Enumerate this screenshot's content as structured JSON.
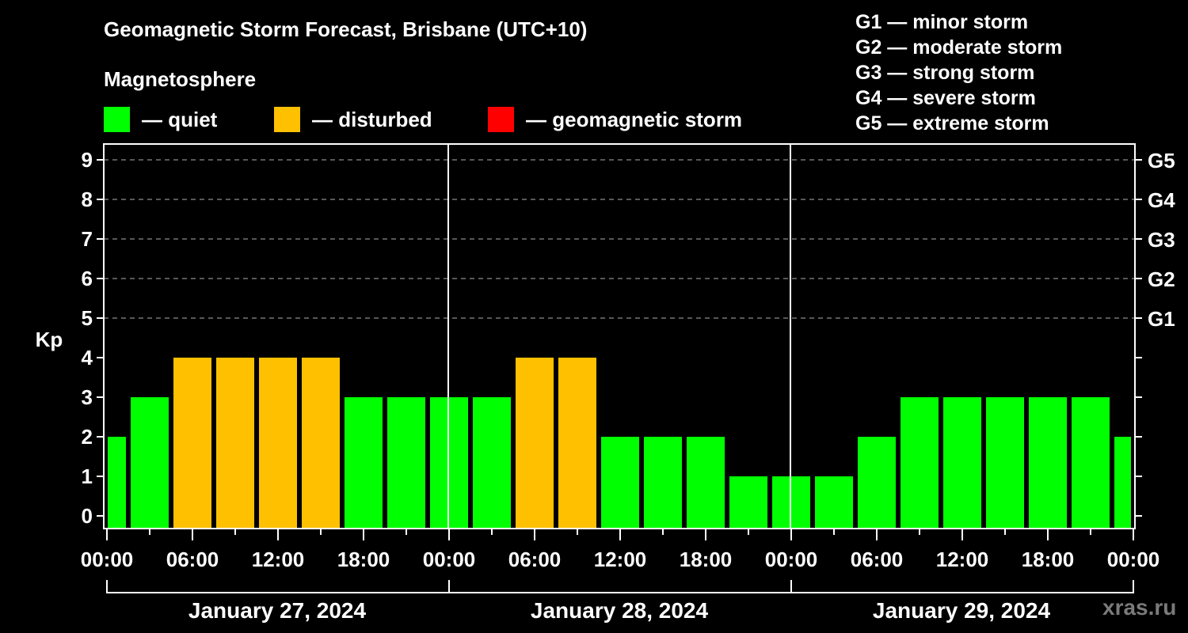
{
  "header": {
    "title": "Geomagnetic Storm Forecast, Brisbane (UTC+10)",
    "subtitle": "Magnetosphere"
  },
  "legend": [
    {
      "label": "— quiet",
      "color": "#00ff00"
    },
    {
      "label": "— disturbed",
      "color": "#ffc000"
    },
    {
      "label": "— geomagnetic storm",
      "color": "#ff0000"
    }
  ],
  "g_scale": [
    {
      "label": "G1 — minor storm"
    },
    {
      "label": "G2 — moderate storm"
    },
    {
      "label": "G3 — strong storm"
    },
    {
      "label": "G4 — severe storm"
    },
    {
      "label": "G5 — extreme storm"
    }
  ],
  "axis": {
    "ylabel": "Kp",
    "y_ticks": [
      "0",
      "1",
      "2",
      "3",
      "4",
      "5",
      "6",
      "7",
      "8",
      "9"
    ],
    "right_ticks": [
      {
        "kp": 5,
        "label": "G1"
      },
      {
        "kp": 6,
        "label": "G2"
      },
      {
        "kp": 7,
        "label": "G3"
      },
      {
        "kp": 8,
        "label": "G4"
      },
      {
        "kp": 9,
        "label": "G5"
      }
    ],
    "x_ticks": [
      "00:00",
      "06:00",
      "12:00",
      "18:00",
      "00:00",
      "06:00",
      "12:00",
      "18:00",
      "00:00",
      "06:00",
      "12:00",
      "18:00",
      "00:00"
    ],
    "days": [
      "January 27, 2024",
      "January 28, 2024",
      "January 29, 2024"
    ]
  },
  "colors": {
    "quiet": "#00ff00",
    "disturbed": "#ffc000",
    "storm": "#ff0000",
    "background": "#000000",
    "axis": "#ffffff",
    "grid": "#8c8c8c"
  },
  "watermark": "xras.ru",
  "chart_data": {
    "type": "bar",
    "title": "Geomagnetic Storm Forecast, Brisbane (UTC+10)",
    "subtitle": "Magnetosphere",
    "xlabel": "",
    "ylabel": "Kp",
    "ylim": [
      0,
      9
    ],
    "grid": "dashed horizontal at Kp 5-9",
    "legend_position": "top",
    "x_range": [
      "2024-01-27 00:00",
      "2024-01-30 00:00"
    ],
    "bar_interval_hours": 3,
    "categories": [
      "Jan 27 00:00-01:30",
      "Jan 27 01:30-04:30",
      "Jan 27 04:30-07:30",
      "Jan 27 07:30-10:30",
      "Jan 27 10:30-13:30",
      "Jan 27 13:30-16:30",
      "Jan 27 16:30-19:30",
      "Jan 27 19:30-22:30",
      "Jan 27 22:30-01:30",
      "Jan 28 01:30-04:30",
      "Jan 28 04:30-07:30",
      "Jan 28 07:30-10:30",
      "Jan 28 10:30-13:30",
      "Jan 28 13:30-16:30",
      "Jan 28 16:30-19:30",
      "Jan 28 19:30-22:30",
      "Jan 28 22:30-01:30",
      "Jan 29 01:30-04:30",
      "Jan 29 04:30-07:30",
      "Jan 29 07:30-10:30",
      "Jan 29 10:30-13:30",
      "Jan 29 13:30-16:30",
      "Jan 29 16:30-19:30",
      "Jan 29 19:30-22:30",
      "Jan 29 22:30-00:00"
    ],
    "values": [
      2,
      3,
      4,
      4,
      4,
      4,
      3,
      3,
      3,
      3,
      4,
      4,
      2,
      2,
      2,
      1,
      1,
      1,
      2,
      3,
      3,
      3,
      3,
      3,
      2
    ],
    "status": [
      "quiet",
      "quiet",
      "disturbed",
      "disturbed",
      "disturbed",
      "disturbed",
      "quiet",
      "quiet",
      "quiet",
      "quiet",
      "disturbed",
      "disturbed",
      "quiet",
      "quiet",
      "quiet",
      "quiet",
      "quiet",
      "quiet",
      "quiet",
      "quiet",
      "quiet",
      "quiet",
      "quiet",
      "quiet",
      "quiet"
    ],
    "right_axis": {
      "5": "G1",
      "6": "G2",
      "7": "G3",
      "8": "G4",
      "9": "G5"
    }
  }
}
